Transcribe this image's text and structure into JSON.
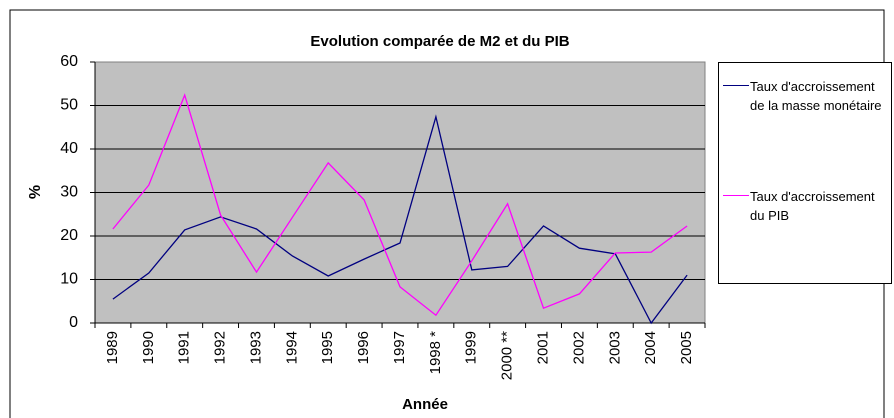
{
  "chart_data": {
    "type": "line",
    "title": "Evolution comparée de M2 et du PIB",
    "xlabel": "Année",
    "ylabel": "%",
    "categories": [
      "1989",
      "1990",
      "1991",
      "1992",
      "1993",
      "1994",
      "1995",
      "1996",
      "1997",
      "1998 *",
      "1999",
      "2000 **",
      "2001",
      "2002",
      "2003",
      "2004",
      "2005"
    ],
    "series": [
      {
        "name": "Taux d'accroissement de la masse monétaire",
        "color": "#000080",
        "values": [
          5.5,
          11.5,
          21.4,
          24.4,
          21.6,
          15.4,
          10.8,
          14.7,
          18.4,
          47.4,
          12.2,
          13,
          22.3,
          17.2,
          15.9,
          0,
          11
        ]
      },
      {
        "name": "Taux d'accroissement du PIB",
        "color": "#ff00ff",
        "values": [
          21.6,
          31.7,
          52.4,
          24.8,
          11.7,
          24.3,
          36.8,
          28.3,
          8.3,
          1.8,
          14.3,
          27.4,
          3.4,
          6.7,
          16.1,
          16.3,
          22.3
        ]
      }
    ],
    "ylim": [
      0,
      60
    ],
    "yticks": [
      0,
      10,
      20,
      30,
      40,
      50,
      60
    ],
    "grid": true,
    "legend": "right"
  }
}
